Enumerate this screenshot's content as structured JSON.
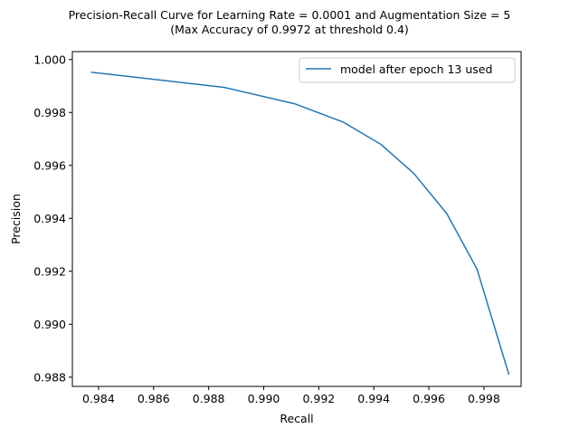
{
  "chart_data": {
    "type": "line",
    "title": "Precision-Recall Curve for Learning Rate = 0.0001 and Augmentation Size = 5",
    "subtitle": "(Max Accuracy of 0.9972 at threshold 0.4)",
    "xlabel": "Recall",
    "ylabel": "Precision",
    "xlim": [
      0.98305,
      0.99935
    ],
    "ylim": [
      0.98765,
      1.0003
    ],
    "x_ticks": [
      {
        "value": 0.984,
        "label": "0.984"
      },
      {
        "value": 0.986,
        "label": "0.986"
      },
      {
        "value": 0.988,
        "label": "0.988"
      },
      {
        "value": 0.99,
        "label": "0.990"
      },
      {
        "value": 0.992,
        "label": "0.992"
      },
      {
        "value": 0.994,
        "label": "0.994"
      },
      {
        "value": 0.996,
        "label": "0.996"
      },
      {
        "value": 0.998,
        "label": "0.998"
      }
    ],
    "y_ticks": [
      {
        "value": 0.988,
        "label": "0.988"
      },
      {
        "value": 0.99,
        "label": "0.990"
      },
      {
        "value": 0.992,
        "label": "0.992"
      },
      {
        "value": 0.994,
        "label": "0.994"
      },
      {
        "value": 0.996,
        "label": "0.996"
      },
      {
        "value": 0.998,
        "label": "0.998"
      },
      {
        "value": 1.0,
        "label": "1.000"
      }
    ],
    "grid": false,
    "legend_position": "top-right",
    "series": [
      {
        "name": "model after epoch 13 used",
        "color": "#1f77b4",
        "points": [
          {
            "x": 0.98375,
            "y": 0.99952
          },
          {
            "x": 0.98855,
            "y": 0.99895
          },
          {
            "x": 0.99115,
            "y": 0.99832
          },
          {
            "x": 0.9929,
            "y": 0.99763
          },
          {
            "x": 0.99425,
            "y": 0.9968
          },
          {
            "x": 0.99545,
            "y": 0.9957
          },
          {
            "x": 0.99665,
            "y": 0.99418
          },
          {
            "x": 0.99775,
            "y": 0.99208
          },
          {
            "x": 0.9989,
            "y": 0.98812
          }
        ]
      }
    ]
  }
}
